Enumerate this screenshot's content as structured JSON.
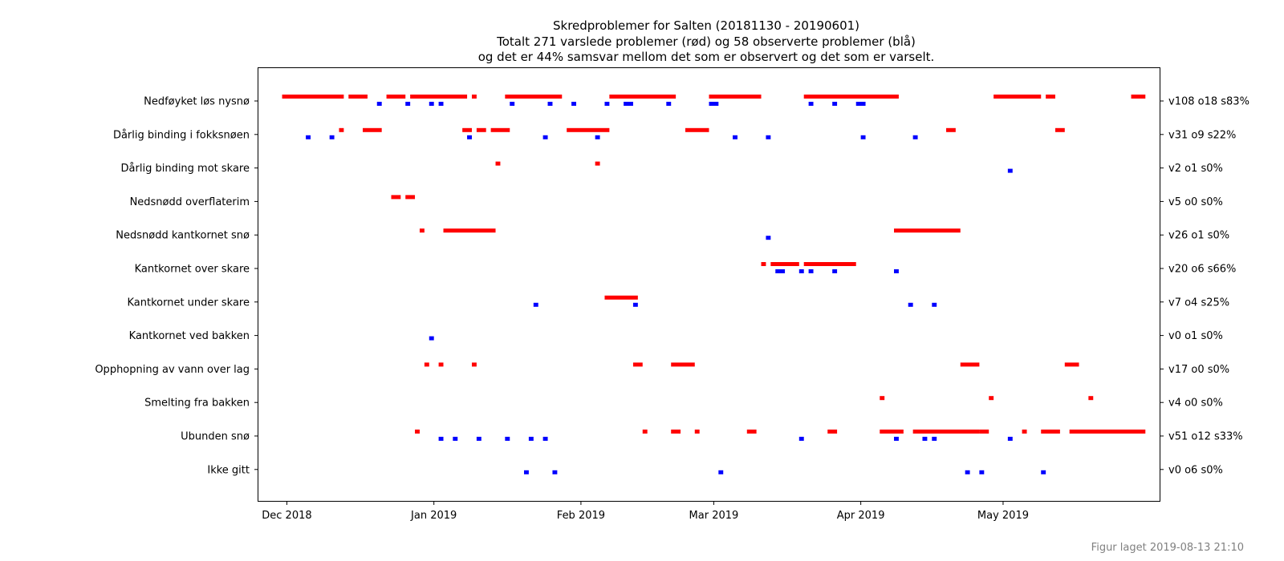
{
  "footer": "Figur laget 2019-08-13 21:10",
  "chart_data": {
    "type": "timeline",
    "title": [
      "Skredproblemer for Salten (20181130 - 20190601)",
      "Totalt 271 varslede problemer (rød) og 58 observerte problemer (blå)",
      "og det er 44% samsvar mellom det som er observert og det som er varselt."
    ],
    "x_range": [
      "2018-11-25",
      "2019-06-03"
    ],
    "x_ticks": [
      {
        "date": "2018-12-01",
        "label": "Dec 2018"
      },
      {
        "date": "2019-01-01",
        "label": "Jan 2019"
      },
      {
        "date": "2019-02-01",
        "label": "Feb 2019"
      },
      {
        "date": "2019-03-01",
        "label": "Mar 2019"
      },
      {
        "date": "2019-04-01",
        "label": "Apr 2019"
      },
      {
        "date": "2019-05-01",
        "label": "May 2019"
      }
    ],
    "colors": {
      "varslet": "#ff0000",
      "observert": "#0000ff"
    },
    "problems": [
      {
        "name": "Nedføyket løs nysnø",
        "stats": "v108 o18 s83%",
        "varslet": [
          [
            "2018-11-30",
            "2018-12-12"
          ],
          [
            "2018-12-14",
            "2018-12-17"
          ],
          [
            "2018-12-22",
            "2018-12-25"
          ],
          [
            "2018-12-27",
            "2019-01-07"
          ],
          [
            "2019-01-09",
            "2019-01-09"
          ],
          [
            "2019-01-16",
            "2019-01-27"
          ],
          [
            "2019-02-07",
            "2019-02-20"
          ],
          [
            "2019-02-28",
            "2019-03-10"
          ],
          [
            "2019-03-20",
            "2019-04-08"
          ],
          [
            "2019-04-29",
            "2019-05-08"
          ],
          [
            "2019-05-10",
            "2019-05-11"
          ],
          [
            "2019-05-28",
            "2019-05-30"
          ]
        ],
        "observert": [
          [
            "2018-12-20",
            "2018-12-20"
          ],
          [
            "2018-12-26",
            "2018-12-26"
          ],
          [
            "2018-12-31",
            "2018-12-31"
          ],
          [
            "2019-01-02",
            "2019-01-02"
          ],
          [
            "2019-01-17",
            "2019-01-17"
          ],
          [
            "2019-01-25",
            "2019-01-25"
          ],
          [
            "2019-01-30",
            "2019-01-30"
          ],
          [
            "2019-02-06",
            "2019-02-06"
          ],
          [
            "2019-02-10",
            "2019-02-11"
          ],
          [
            "2019-02-19",
            "2019-02-19"
          ],
          [
            "2019-02-28",
            "2019-03-01"
          ],
          [
            "2019-03-21",
            "2019-03-21"
          ],
          [
            "2019-03-26",
            "2019-03-26"
          ],
          [
            "2019-03-31",
            "2019-04-01"
          ]
        ]
      },
      {
        "name": "Dårlig binding i fokksnøen",
        "stats": "v31 o9 s22%",
        "varslet": [
          [
            "2018-12-12",
            "2018-12-12"
          ],
          [
            "2018-12-17",
            "2018-12-20"
          ],
          [
            "2019-01-07",
            "2019-01-08"
          ],
          [
            "2019-01-10",
            "2019-01-11"
          ],
          [
            "2019-01-13",
            "2019-01-16"
          ],
          [
            "2019-01-29",
            "2019-02-06"
          ],
          [
            "2019-02-23",
            "2019-02-27"
          ],
          [
            "2019-04-19",
            "2019-04-20"
          ],
          [
            "2019-05-12",
            "2019-05-13"
          ]
        ],
        "observert": [
          [
            "2018-12-05",
            "2018-12-05"
          ],
          [
            "2018-12-10",
            "2018-12-10"
          ],
          [
            "2019-01-08",
            "2019-01-08"
          ],
          [
            "2019-01-24",
            "2019-01-24"
          ],
          [
            "2019-02-04",
            "2019-02-04"
          ],
          [
            "2019-03-05",
            "2019-03-05"
          ],
          [
            "2019-03-12",
            "2019-03-12"
          ],
          [
            "2019-04-01",
            "2019-04-01"
          ],
          [
            "2019-04-12",
            "2019-04-12"
          ]
        ]
      },
      {
        "name": "Dårlig binding mot skare",
        "stats": "v2 o1 s0%",
        "varslet": [
          [
            "2019-01-14",
            "2019-01-14"
          ],
          [
            "2019-02-04",
            "2019-02-04"
          ]
        ],
        "observert": [
          [
            "2019-05-02",
            "2019-05-02"
          ]
        ]
      },
      {
        "name": "Nedsnødd overflaterim",
        "stats": "v5 o0 s0%",
        "varslet": [
          [
            "2018-12-23",
            "2018-12-24"
          ],
          [
            "2018-12-26",
            "2018-12-27"
          ]
        ],
        "observert": []
      },
      {
        "name": "Nedsnødd kantkornet snø",
        "stats": "v26 o1 s0%",
        "varslet": [
          [
            "2018-12-29",
            "2018-12-29"
          ],
          [
            "2019-01-03",
            "2019-01-13"
          ],
          [
            "2019-04-08",
            "2019-04-21"
          ]
        ],
        "observert": [
          [
            "2019-03-12",
            "2019-03-12"
          ]
        ]
      },
      {
        "name": "Kantkornet over skare",
        "stats": "v20 o6 s66%",
        "varslet": [
          [
            "2019-03-11",
            "2019-03-11"
          ],
          [
            "2019-03-13",
            "2019-03-18"
          ],
          [
            "2019-03-20",
            "2019-03-30"
          ]
        ],
        "observert": [
          [
            "2019-03-14",
            "2019-03-15"
          ],
          [
            "2019-03-19",
            "2019-03-19"
          ],
          [
            "2019-03-21",
            "2019-03-21"
          ],
          [
            "2019-03-26",
            "2019-03-26"
          ],
          [
            "2019-04-08",
            "2019-04-08"
          ]
        ]
      },
      {
        "name": "Kantkornet under skare",
        "stats": "v7 o4 s25%",
        "varslet": [
          [
            "2019-02-06",
            "2019-02-12"
          ]
        ],
        "observert": [
          [
            "2019-01-22",
            "2019-01-22"
          ],
          [
            "2019-02-12",
            "2019-02-12"
          ],
          [
            "2019-04-11",
            "2019-04-11"
          ],
          [
            "2019-04-16",
            "2019-04-16"
          ]
        ]
      },
      {
        "name": "Kantkornet ved bakken",
        "stats": "v0 o1 s0%",
        "varslet": [],
        "observert": [
          [
            "2018-12-31",
            "2018-12-31"
          ]
        ]
      },
      {
        "name": "Opphopning av vann over lag",
        "stats": "v17 o0 s0%",
        "varslet": [
          [
            "2018-12-30",
            "2018-12-30"
          ],
          [
            "2019-01-02",
            "2019-01-02"
          ],
          [
            "2019-01-09",
            "2019-01-09"
          ],
          [
            "2019-02-12",
            "2019-02-13"
          ],
          [
            "2019-02-20",
            "2019-02-24"
          ],
          [
            "2019-04-22",
            "2019-04-25"
          ],
          [
            "2019-05-14",
            "2019-05-16"
          ]
        ],
        "observert": []
      },
      {
        "name": "Smelting fra bakken",
        "stats": "v4 o0 s0%",
        "varslet": [
          [
            "2019-04-05",
            "2019-04-05"
          ],
          [
            "2019-04-28",
            "2019-04-28"
          ],
          [
            "2019-05-19",
            "2019-05-19"
          ]
        ],
        "observert": []
      },
      {
        "name": "Ubunden snø",
        "stats": "v51 o12 s33%",
        "varslet": [
          [
            "2018-12-28",
            "2018-12-28"
          ],
          [
            "2019-02-14",
            "2019-02-14"
          ],
          [
            "2019-02-20",
            "2019-02-21"
          ],
          [
            "2019-02-25",
            "2019-02-25"
          ],
          [
            "2019-03-08",
            "2019-03-09"
          ],
          [
            "2019-03-25",
            "2019-03-26"
          ],
          [
            "2019-04-05",
            "2019-04-09"
          ],
          [
            "2019-04-12",
            "2019-04-25"
          ],
          [
            "2019-04-26",
            "2019-04-27"
          ],
          [
            "2019-05-05",
            "2019-05-05"
          ],
          [
            "2019-05-09",
            "2019-05-12"
          ],
          [
            "2019-05-15",
            "2019-05-30"
          ]
        ],
        "observert": [
          [
            "2019-01-02",
            "2019-01-02"
          ],
          [
            "2019-01-05",
            "2019-01-05"
          ],
          [
            "2019-01-10",
            "2019-01-10"
          ],
          [
            "2019-01-16",
            "2019-01-16"
          ],
          [
            "2019-01-21",
            "2019-01-21"
          ],
          [
            "2019-01-24",
            "2019-01-24"
          ],
          [
            "2019-03-19",
            "2019-03-19"
          ],
          [
            "2019-04-08",
            "2019-04-08"
          ],
          [
            "2019-04-14",
            "2019-04-14"
          ],
          [
            "2019-04-16",
            "2019-04-16"
          ],
          [
            "2019-05-02",
            "2019-05-02"
          ]
        ]
      },
      {
        "name": "Ikke gitt",
        "stats": "v0 o6 s0%",
        "varslet": [],
        "observert": [
          [
            "2019-01-20",
            "2019-01-20"
          ],
          [
            "2019-01-26",
            "2019-01-26"
          ],
          [
            "2019-03-02",
            "2019-03-02"
          ],
          [
            "2019-04-23",
            "2019-04-23"
          ],
          [
            "2019-04-26",
            "2019-04-26"
          ],
          [
            "2019-05-09",
            "2019-05-09"
          ]
        ]
      }
    ]
  }
}
